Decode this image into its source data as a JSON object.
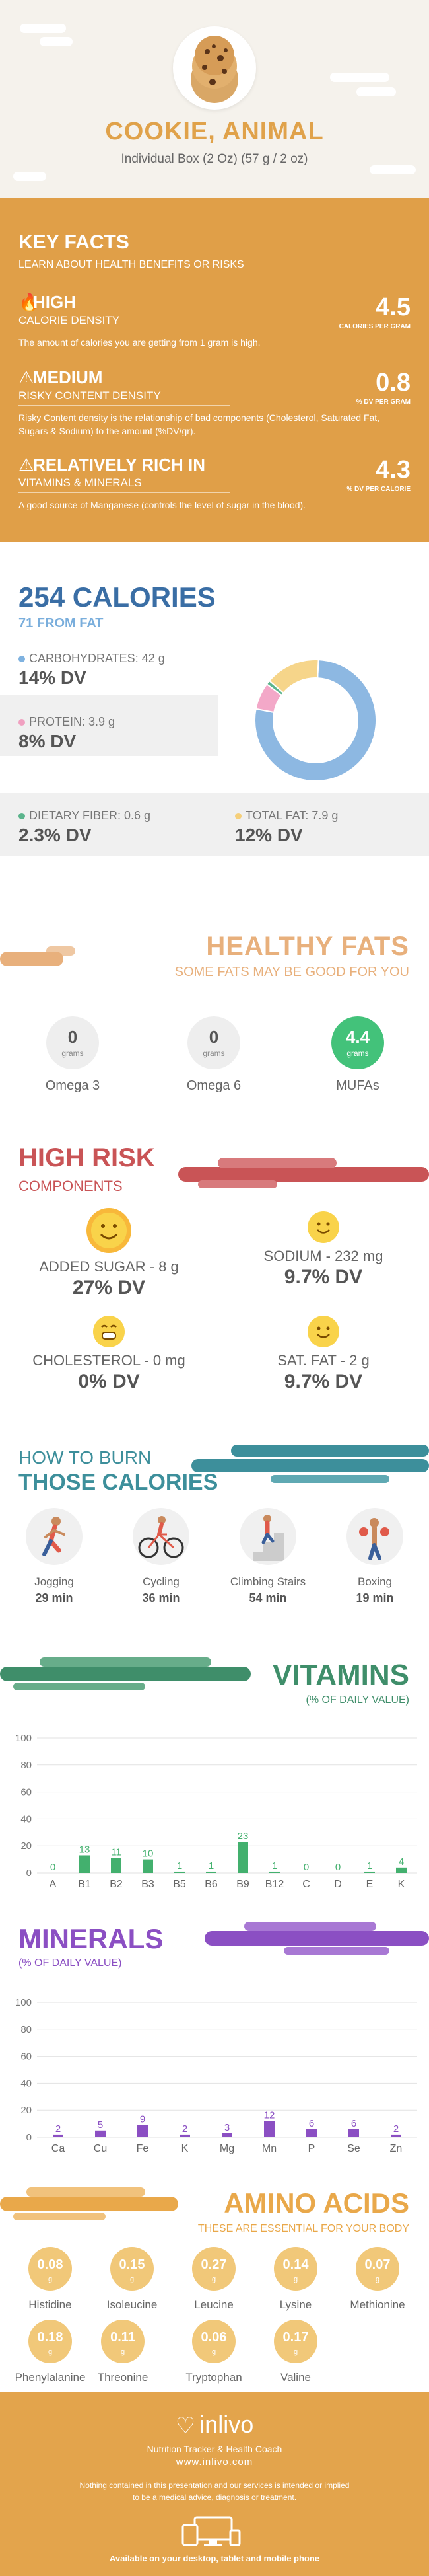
{
  "header": {
    "title": "COOKIE, ANIMAL",
    "subtitle": "Individual Box (2 Oz) (57 g / 2 oz)"
  },
  "key_facts": {
    "title": "KEY FACTS",
    "subtitle": "LEARN ABOUT HEALTH BENEFITS OR RISKS",
    "rows": [
      {
        "icon": "flame-icon",
        "label": "HIGH",
        "category": "CALORIE DENSITY",
        "description": "The amount of calories you are getting from 1 gram is high.",
        "value": "4.5",
        "unit": "CALORIES PER GRAM"
      },
      {
        "icon": "warning-icon",
        "label": "MEDIUM",
        "category": "RISKY CONTENT DENSITY",
        "description": "Risky Content density is the relationship of bad components (Cholesterol, Saturated Fat, Sugars & Sodium) to the amount (%DV/gr).",
        "value": "0.8",
        "unit": "% DV PER GRAM"
      },
      {
        "icon": "warning-icon",
        "label": "RELATIVELY RICH  IN",
        "category": "VITAMINS & MINERALS",
        "description": "A good source of Manganese (controls the level of sugar in the blood).",
        "value": "4.3",
        "unit": "% DV PER CALORIE"
      }
    ]
  },
  "calories": {
    "title": "254 CALORIES",
    "subtitle": "71 FROM FAT",
    "nutrients": [
      {
        "label": "CARBOHYDRATES: 42 g",
        "dv": "14% DV",
        "color": "#7fb2e0"
      },
      {
        "label": "PROTEIN: 3.9 g",
        "dv": "8% DV",
        "color": "#f0a0c0"
      },
      {
        "label": "DIETARY FIBER: 0.6 g",
        "dv": "2.3% DV",
        "color": "#5bb48c"
      },
      {
        "label": "TOTAL FAT: 7.9 g",
        "dv": "12% DV",
        "color": "#f5cf7a"
      }
    ],
    "donut": [
      {
        "name": "carbohydrates",
        "value": 42,
        "color": "#8db8e2"
      },
      {
        "name": "protein",
        "value": 3.9,
        "color": "#f3a8c8"
      },
      {
        "name": "fiber",
        "value": 0.6,
        "color": "#5bb48c"
      },
      {
        "name": "fat",
        "value": 7.9,
        "color": "#f6d58a"
      }
    ]
  },
  "healthy_fats": {
    "title": "HEALTHY FATS",
    "subtitle": "SOME FATS MAY BE GOOD FOR YOU",
    "items": [
      {
        "value": "0",
        "unit": "grams",
        "name": "Omega 3"
      },
      {
        "value": "0",
        "unit": "grams",
        "name": "Omega 6"
      },
      {
        "value": "4.4",
        "unit": "grams",
        "name": "MUFAs"
      }
    ]
  },
  "high_risk": {
    "title": "HIGH RISK",
    "subtitle": "COMPONENTS",
    "items": [
      {
        "label": "ADDED SUGAR - 8 g",
        "dv": "27% DV"
      },
      {
        "label": "SODIUM - 232 mg",
        "dv": "9.7% DV"
      },
      {
        "label": "CHOLESTEROL - 0 mg",
        "dv": "0% DV"
      },
      {
        "label": "SAT. FAT - 2 g",
        "dv": "9.7% DV"
      }
    ]
  },
  "burn": {
    "title_line1": "HOW TO BURN",
    "title_line2": "THOSE CALORIES",
    "activities": [
      {
        "name": "Jogging",
        "time": "29 min"
      },
      {
        "name": "Cycling",
        "time": "36 min"
      },
      {
        "name": "Climbing Stairs",
        "time": "54 min"
      },
      {
        "name": "Boxing",
        "time": "19 min"
      }
    ]
  },
  "vitamins": {
    "title": "VITAMINS",
    "subtitle": "(% OF DAILY VALUE)",
    "chart_data": {
      "type": "bar",
      "categories": [
        "A",
        "B1",
        "B2",
        "B3",
        "B5",
        "B6",
        "B9",
        "B12",
        "C",
        "D",
        "E",
        "K"
      ],
      "values": [
        0,
        13,
        11,
        10,
        1,
        1,
        23,
        1,
        0,
        0,
        1,
        4
      ],
      "ylim": [
        0,
        100
      ],
      "yticks": [
        "0",
        "20",
        "40",
        "60",
        "80",
        "100"
      ],
      "color": "#43b06e"
    }
  },
  "minerals": {
    "title": "MINERALS",
    "subtitle": "(% OF DAILY VALUE)",
    "chart_data": {
      "type": "bar",
      "categories": [
        "Ca",
        "Cu",
        "Fe",
        "K",
        "Mg",
        "Mn",
        "P",
        "Se",
        "Zn"
      ],
      "values": [
        2,
        5,
        9,
        2,
        3,
        12,
        6,
        6,
        2
      ],
      "ylim": [
        0,
        100
      ],
      "yticks": [
        "0",
        "20",
        "40",
        "60",
        "80",
        "100"
      ],
      "color": "#8b4fc3"
    }
  },
  "amino_acids": {
    "title": "AMINO ACIDS",
    "subtitle": "THESE ARE ESSENTIAL FOR YOUR BODY",
    "items": [
      {
        "value": "0.08",
        "unit": "g",
        "name": "Histidine"
      },
      {
        "value": "0.15",
        "unit": "g",
        "name": "Isoleucine"
      },
      {
        "value": "0.27",
        "unit": "g",
        "name": "Leucine"
      },
      {
        "value": "0.14",
        "unit": "g",
        "name": "Lysine"
      },
      {
        "value": "0.07",
        "unit": "g",
        "name": "Methionine"
      },
      {
        "value": "0.18",
        "unit": "g",
        "name": "Phenylalanine"
      },
      {
        "value": "0.11",
        "unit": "g",
        "name": "Threonine"
      },
      {
        "value": "0.06",
        "unit": "g",
        "name": "Tryptophan"
      },
      {
        "value": "0.17",
        "unit": "g",
        "name": "Valine"
      }
    ]
  },
  "footer": {
    "brand": "inlivo",
    "tagline": "Nutrition Tracker & Health Coach",
    "site": "www.inlivo.com",
    "disclaimer": "Nothing contained in this presentation and our services is intended or implied to be a medical advice, diagnosis or treatment.",
    "available": "Available on your desktop, tablet and mobile phone"
  }
}
